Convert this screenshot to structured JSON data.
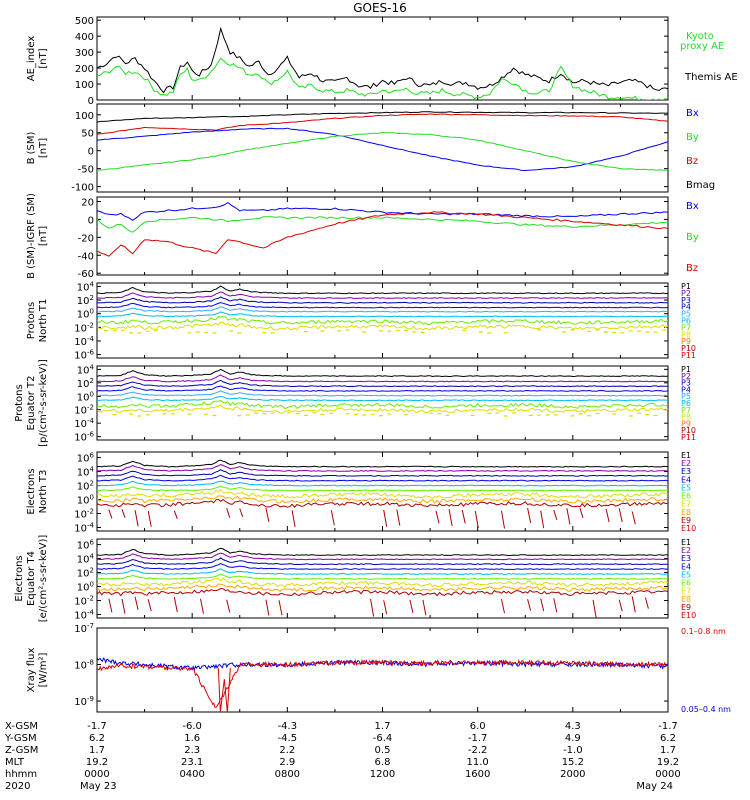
{
  "title": "GOES-16",
  "colors": {
    "black": "#000000",
    "red": "#e00000",
    "green": "#22dd22",
    "blue": "#0000ee",
    "cyan": "#00bbee",
    "lightblue": "#33aaff",
    "lime": "#66ee00",
    "yellow": "#dddd00",
    "orange": "#ffaa00",
    "orange2": "#ff7700",
    "darkred": "#aa0000",
    "crimson": "#dd0000",
    "purple": "#8800aa",
    "violet": "#0000aa"
  },
  "chart_data": [
    {
      "panel": "ae",
      "type": "line",
      "ylabel": [
        "AE_index",
        "[nT]"
      ],
      "yticks": [
        "500",
        "400",
        "300",
        "200",
        "100",
        "0"
      ],
      "ylim": [
        0,
        520
      ],
      "legend": [
        {
          "text": "Kyoto",
          "color": "green"
        },
        {
          "text": "proxy AE",
          "color": "green"
        },
        {
          "text": "Themis AE",
          "color": "black"
        }
      ],
      "series": [
        {
          "color": "black",
          "x": [
            0,
            0.4,
            0.8,
            1.2,
            1.6,
            2.0,
            2.4,
            2.8,
            3.2,
            3.5,
            3.8,
            4.0,
            4.3,
            4.8,
            5.2,
            5.6,
            6.0,
            6.4,
            6.8,
            7.2,
            7.6,
            8.0,
            8.5,
            9,
            9.5,
            10,
            10.5,
            11,
            11.5,
            12,
            12.5,
            13,
            13.5,
            14,
            14.5,
            15,
            15.5,
            16,
            16.5,
            17,
            17.5,
            18,
            18.5,
            19,
            19.5,
            20,
            20.5,
            21,
            21.5,
            22,
            22.5,
            23,
            23.5,
            24
          ],
          "y": [
            200,
            230,
            280,
            230,
            260,
            200,
            120,
            60,
            80,
            200,
            240,
            180,
            160,
            220,
            440,
            300,
            260,
            210,
            240,
            160,
            200,
            260,
            140,
            170,
            120,
            110,
            140,
            90,
            80,
            120,
            100,
            140,
            100,
            90,
            120,
            100,
            110,
            80,
            90,
            140,
            200,
            160,
            140,
            120,
            170,
            110,
            120,
            100,
            90,
            110,
            120,
            100,
            60,
            70
          ]
        },
        {
          "color": "green",
          "x": [
            0,
            0.4,
            0.8,
            1.2,
            1.6,
            2.0,
            2.4,
            2.8,
            3.2,
            3.5,
            3.8,
            4.0,
            4.3,
            4.8,
            5.2,
            5.6,
            6.0,
            6.4,
            6.8,
            7.2,
            7.6,
            8.0,
            8.5,
            9,
            9.5,
            10,
            10.5,
            11,
            11.5,
            12,
            12.5,
            13,
            13.5,
            14,
            14.5,
            15,
            15.5,
            16,
            16.5,
            17,
            17.5,
            18,
            18.5,
            19,
            19.5,
            20,
            20.5,
            21,
            21.5,
            22,
            22.5,
            23,
            23.5,
            24
          ],
          "y": [
            150,
            170,
            210,
            170,
            180,
            140,
            70,
            30,
            50,
            160,
            190,
            130,
            120,
            180,
            260,
            230,
            200,
            160,
            170,
            100,
            130,
            180,
            70,
            90,
            60,
            50,
            60,
            40,
            30,
            60,
            50,
            70,
            40,
            40,
            60,
            40,
            30,
            20,
            40,
            130,
            110,
            60,
            40,
            60,
            200,
            90,
            60,
            40,
            20,
            20,
            10,
            10,
            10,
            10
          ]
        }
      ]
    },
    {
      "panel": "b",
      "type": "line",
      "ylabel": [
        "B (SM)",
        "[nT]"
      ],
      "yticks": [
        "100",
        "50",
        "0",
        "-50",
        "-100"
      ],
      "ylim": [
        -115,
        130
      ],
      "legend": [
        {
          "text": "Bx",
          "color": "blue"
        },
        {
          "text": "By",
          "color": "green"
        },
        {
          "text": "Bz",
          "color": "crimson"
        },
        {
          "text": "Bmag",
          "color": "black"
        }
      ],
      "series": [
        {
          "color": "black",
          "x": [
            0,
            2,
            4,
            5,
            6,
            8,
            10,
            12,
            14,
            16,
            18,
            20,
            22,
            24
          ],
          "y": [
            80,
            90,
            92,
            95,
            95,
            100,
            104,
            106,
            108,
            107,
            106,
            106,
            105,
            104
          ]
        },
        {
          "color": "crimson",
          "x": [
            0,
            2,
            4,
            5,
            6,
            8,
            10,
            12,
            14,
            16,
            18,
            20,
            22,
            24
          ],
          "y": [
            45,
            65,
            60,
            58,
            70,
            78,
            90,
            98,
            102,
            100,
            98,
            97,
            94,
            82
          ]
        },
        {
          "color": "blue",
          "x": [
            0,
            2,
            4,
            5,
            6,
            8,
            10,
            12,
            14,
            16,
            18,
            20,
            22,
            24
          ],
          "y": [
            30,
            40,
            52,
            55,
            60,
            62,
            45,
            15,
            -15,
            -40,
            -55,
            -45,
            -15,
            25
          ]
        },
        {
          "color": "green",
          "x": [
            0,
            2,
            4,
            5,
            6,
            8,
            10,
            12,
            14,
            16,
            18,
            20,
            22,
            24
          ],
          "y": [
            -55,
            -40,
            -25,
            -15,
            0,
            20,
            40,
            50,
            45,
            30,
            0,
            -30,
            -50,
            -55
          ]
        }
      ]
    },
    {
      "panel": "dbgr",
      "type": "line",
      "ylabel": [
        "B (SM)-IGRF (SM)",
        "[nT]"
      ],
      "yticks": [
        "20",
        "0",
        "-20",
        "-40",
        "-60"
      ],
      "ylim": [
        -62,
        25
      ],
      "legend": [
        {
          "text": "Bx",
          "color": "blue"
        },
        {
          "text": "By",
          "color": "green"
        },
        {
          "text": "Bz",
          "color": "crimson"
        }
      ],
      "series": [
        {
          "color": "blue",
          "x": [
            0,
            0.5,
            1,
            1.5,
            2,
            3,
            4,
            5,
            5.5,
            6,
            7,
            8,
            10,
            12,
            14,
            16,
            18,
            20,
            22,
            24
          ],
          "y": [
            10,
            5,
            6,
            0,
            8,
            10,
            12,
            14,
            18,
            10,
            10,
            12,
            12,
            8,
            6,
            6,
            4,
            3,
            6,
            8
          ]
        },
        {
          "color": "green",
          "x": [
            0,
            0.5,
            1,
            1.5,
            2,
            3,
            4,
            5,
            5.5,
            6,
            7,
            8,
            10,
            12,
            14,
            16,
            18,
            20,
            22,
            24
          ],
          "y": [
            0,
            -10,
            -5,
            -15,
            -2,
            0,
            2,
            0,
            -2,
            0,
            2,
            2,
            2,
            2,
            0,
            -2,
            -6,
            -8,
            -6,
            -3
          ]
        },
        {
          "color": "crimson",
          "x": [
            0,
            0.5,
            1,
            1.5,
            2,
            3,
            4,
            5,
            5.5,
            6,
            7,
            8,
            10,
            12,
            14,
            16,
            18,
            20,
            22,
            24
          ],
          "y": [
            -35,
            -42,
            -28,
            -38,
            -22,
            -25,
            -32,
            -38,
            -22,
            -25,
            -32,
            -20,
            -5,
            5,
            8,
            6,
            2,
            -2,
            -6,
            -10
          ]
        }
      ]
    },
    {
      "panel": "pn",
      "type": "line",
      "scale": "log",
      "ylabel": [
        "Protons",
        "North T1"
      ],
      "yticks": [
        "10^4",
        "10^2",
        "10^0",
        "10^-2",
        "10^-4",
        "10^-6"
      ],
      "ylim": [
        -6.5,
        4.5
      ],
      "legend": [
        {
          "text": "P1",
          "color": "black"
        },
        {
          "text": "P2",
          "color": "purple"
        },
        {
          "text": "P3",
          "color": "violet"
        },
        {
          "text": "P4",
          "color": "blue"
        },
        {
          "text": "P5",
          "color": "lightblue"
        },
        {
          "text": "P6",
          "color": "cyan"
        },
        {
          "text": "P7",
          "color": "lime"
        },
        {
          "text": "P8",
          "color": "yellow"
        },
        {
          "text": "P9",
          "color": "orange2"
        },
        {
          "text": "P10",
          "color": "darkred"
        },
        {
          "text": "P11",
          "color": "crimson"
        }
      ],
      "levels": [
        3.0,
        2.3,
        1.6,
        0.9,
        0.3,
        -0.4,
        -1.2,
        -2.0
      ]
    },
    {
      "panel": "pe",
      "type": "line",
      "scale": "log",
      "ylabel": [
        "Protons",
        "Equator T2",
        "[p/(cm²-s-sr-keV)]"
      ],
      "yticks": [
        "10^4",
        "10^2",
        "10^0",
        "10^-2",
        "10^-4",
        "10^-6"
      ],
      "ylim": [
        -6.5,
        4.5
      ],
      "legend": [
        {
          "text": "P1",
          "color": "black"
        },
        {
          "text": "P2",
          "color": "purple"
        },
        {
          "text": "P3",
          "color": "violet"
        },
        {
          "text": "P4",
          "color": "blue"
        },
        {
          "text": "P5",
          "color": "lightblue"
        },
        {
          "text": "P6",
          "color": "cyan"
        },
        {
          "text": "P7",
          "color": "lime"
        },
        {
          "text": "P8",
          "color": "yellow"
        },
        {
          "text": "P9",
          "color": "orange2"
        },
        {
          "text": "P10",
          "color": "darkred"
        },
        {
          "text": "P11",
          "color": "crimson"
        }
      ],
      "levels": [
        3.0,
        2.2,
        1.5,
        0.8,
        0.1,
        -0.6,
        -1.4,
        -2.1
      ]
    },
    {
      "panel": "en",
      "type": "line",
      "scale": "log",
      "ylabel": [
        "Electrons",
        "North T3"
      ],
      "yticks": [
        "10^6",
        "10^4",
        "10^2",
        "10^0",
        "10^-2",
        "10^-4"
      ],
      "ylim": [
        -4.5,
        6.8
      ],
      "legend": [
        {
          "text": "E1",
          "color": "black"
        },
        {
          "text": "E2",
          "color": "purple"
        },
        {
          "text": "E3",
          "color": "violet"
        },
        {
          "text": "E4",
          "color": "blue"
        },
        {
          "text": "E5",
          "color": "cyan"
        },
        {
          "text": "E6",
          "color": "lime"
        },
        {
          "text": "E7",
          "color": "yellow"
        },
        {
          "text": "E8",
          "color": "orange"
        },
        {
          "text": "E9",
          "color": "darkred"
        },
        {
          "text": "E10",
          "color": "crimson"
        }
      ],
      "levels": [
        4.7,
        4.1,
        3.4,
        2.7,
        2.0,
        1.3,
        0.6,
        -0.1,
        -0.7
      ]
    },
    {
      "panel": "ee",
      "type": "line",
      "scale": "log",
      "ylabel": [
        "Electrons",
        "Equator T4",
        "[e/(cm²-s-sr-keV)]"
      ],
      "yticks": [
        "10^6",
        "10^4",
        "10^2",
        "10^0",
        "10^-2",
        "10^-4"
      ],
      "ylim": [
        -4.5,
        6.8
      ],
      "legend": [
        {
          "text": "E1",
          "color": "black"
        },
        {
          "text": "E2",
          "color": "purple"
        },
        {
          "text": "E3",
          "color": "violet"
        },
        {
          "text": "E4",
          "color": "blue"
        },
        {
          "text": "E5",
          "color": "cyan"
        },
        {
          "text": "E6",
          "color": "lime"
        },
        {
          "text": "E7",
          "color": "yellow"
        },
        {
          "text": "E8",
          "color": "orange"
        },
        {
          "text": "E9",
          "color": "darkred"
        },
        {
          "text": "E10",
          "color": "crimson"
        }
      ],
      "levels": [
        4.5,
        3.9,
        3.2,
        2.5,
        1.8,
        1.1,
        0.4,
        -0.3,
        -0.9
      ]
    },
    {
      "panel": "xray",
      "type": "line",
      "scale": "log",
      "ylabel": [
        "Xray flux",
        "[W/m²]"
      ],
      "yticks": [
        "10^-7",
        "10^-8",
        "10^-9"
      ],
      "ylim": [
        -9.3,
        -7.0
      ],
      "legend": [
        {
          "text": "0.1–0.8 nm",
          "color": "crimson"
        },
        {
          "text": "0.05–0.4 nm",
          "color": "blue"
        }
      ],
      "series": [
        {
          "color": "blue",
          "x": [
            0,
            1,
            2,
            3,
            4,
            5,
            6,
            8,
            10,
            12,
            14,
            16,
            18,
            20,
            22,
            24
          ],
          "y": [
            -7.85,
            -7.95,
            -8.0,
            -8.05,
            -8.1,
            -8.05,
            -8.0,
            -8.0,
            -7.95,
            -7.95,
            -8.0,
            -7.95,
            -8.0,
            -8.0,
            -8.0,
            -8.05
          ]
        },
        {
          "color": "crimson",
          "x": [
            0,
            1,
            2,
            3,
            4,
            5,
            6,
            8,
            10,
            12,
            14,
            16,
            18,
            20,
            22,
            24
          ],
          "y": [
            -8.1,
            -8.05,
            -8.05,
            -8.1,
            -8.1,
            -9.2,
            -8.0,
            -8.0,
            -7.95,
            -7.95,
            -7.95,
            -7.95,
            -7.95,
            -7.95,
            -8.0,
            -8.0
          ]
        }
      ]
    }
  ],
  "xaxis": {
    "rows": [
      "X-GSM",
      "Y-GSM",
      "Z-GSM",
      "MLT",
      "hhmm",
      "2020"
    ],
    "columns": [
      {
        "x": 0,
        "values": [
          "-1.7",
          "6.2",
          "1.7",
          "19.2",
          "0000",
          "May 23"
        ]
      },
      {
        "x": 4,
        "values": [
          "-6.0",
          "1.6",
          "2.3",
          "23.1",
          "0400",
          ""
        ]
      },
      {
        "x": 8,
        "values": [
          "-4.3",
          "-4.5",
          "2.2",
          "2.9",
          "0800",
          ""
        ]
      },
      {
        "x": 12,
        "values": [
          "1.7",
          "-6.4",
          "0.5",
          "6.8",
          "1200",
          ""
        ]
      },
      {
        "x": 16,
        "values": [
          "6.0",
          "-1.7",
          "-2.2",
          "11.0",
          "1600",
          ""
        ]
      },
      {
        "x": 20,
        "values": [
          "4.3",
          "4.9",
          "-1.0",
          "15.2",
          "2000",
          ""
        ]
      },
      {
        "x": 24,
        "values": [
          "-1.7",
          "6.2",
          "1.7",
          "19.2",
          "0000",
          "May 24"
        ]
      }
    ]
  }
}
